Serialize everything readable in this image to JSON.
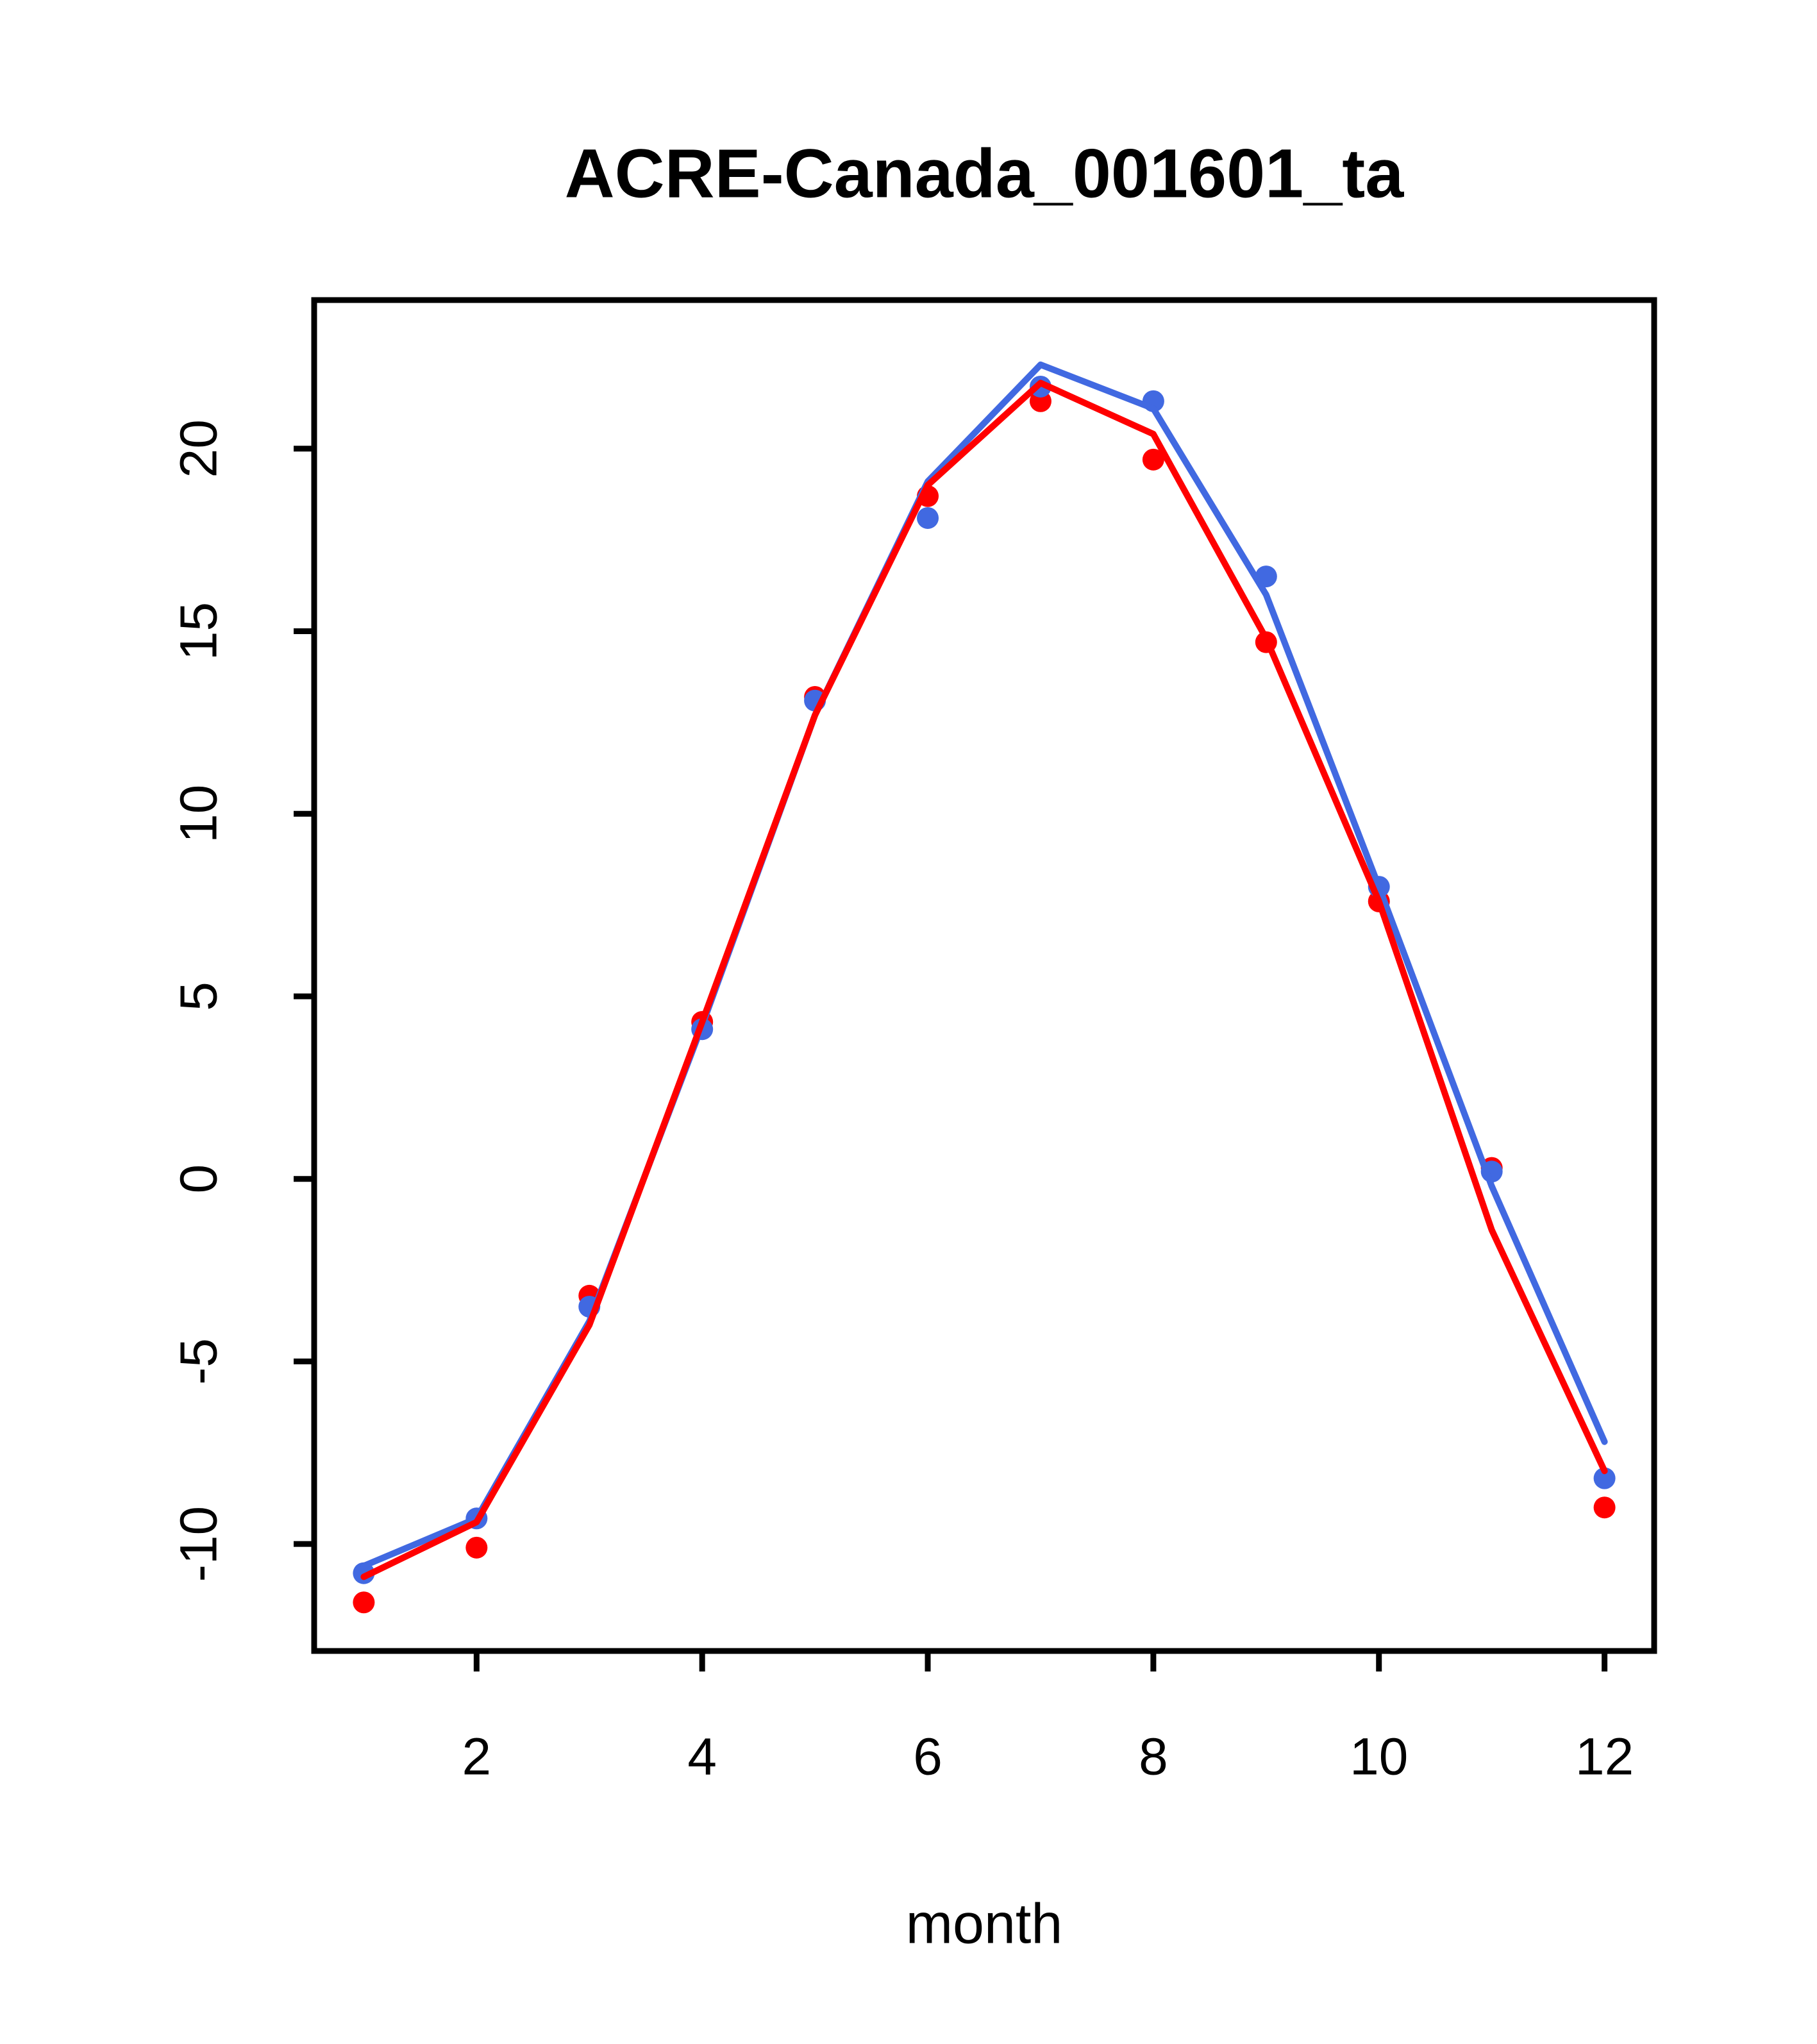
{
  "chart_data": {
    "type": "line",
    "title": "ACRE-Canada_001601_ta",
    "xlabel": "month",
    "ylabel": "",
    "x": [
      1,
      2,
      3,
      4,
      5,
      6,
      7,
      8,
      9,
      10,
      11,
      12
    ],
    "xticks": [
      2,
      4,
      6,
      8,
      10,
      12
    ],
    "yticks": [
      -10,
      -5,
      0,
      5,
      10,
      15,
      20
    ],
    "xlim": [
      0.56,
      12.44
    ],
    "ylim": [
      -12.93,
      24.07
    ],
    "grid": false,
    "legend": "none",
    "colors": {
      "blue": "#4169E1",
      "red": "#FF0000",
      "axis": "#000000",
      "background": "#FFFFFF"
    },
    "series": [
      {
        "name": "red-points",
        "type": "scatter",
        "color": "#FF0000",
        "values": [
          -11.6,
          -10.1,
          -3.2,
          4.3,
          13.2,
          18.7,
          21.3,
          19.7,
          14.7,
          7.6,
          0.3,
          -9.0
        ]
      },
      {
        "name": "blue-points",
        "type": "scatter",
        "color": "#4169E1",
        "values": [
          -10.8,
          -9.3,
          -3.5,
          4.1,
          13.1,
          18.1,
          21.7,
          21.3,
          16.5,
          8.0,
          0.2,
          -8.2
        ]
      },
      {
        "name": "blue-line",
        "type": "line",
        "color": "#4169E1",
        "values": [
          -10.6,
          -9.3,
          -3.9,
          4.2,
          12.7,
          19.1,
          22.3,
          21.1,
          16.0,
          8.0,
          -0.2,
          -7.2
        ]
      },
      {
        "name": "red-line",
        "type": "line",
        "color": "#FF0000",
        "values": [
          -10.9,
          -9.4,
          -4.0,
          4.3,
          12.7,
          19.0,
          21.8,
          20.4,
          14.8,
          7.6,
          -1.4,
          -8.0
        ]
      }
    ]
  }
}
